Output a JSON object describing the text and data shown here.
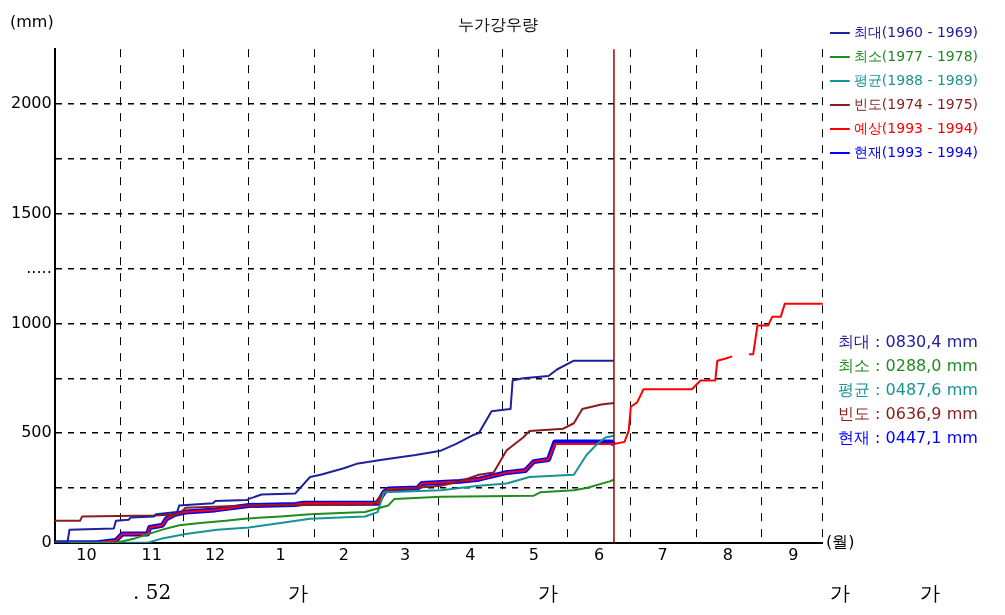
{
  "chart_data": {
    "type": "line",
    "title": "누가강우량",
    "ylabel": "(mm)",
    "xlabel": "(월)",
    "xlim": [
      "1993-10-01",
      "1994-09-30"
    ],
    "ylim": [
      0,
      2250
    ],
    "xticks": [
      {
        "value": "1993-10-01",
        "label": null
      },
      {
        "value": "1993-10-16",
        "label": "10"
      },
      {
        "value": "1993-11-01",
        "label": null
      },
      {
        "value": "1993-11-16",
        "label": "11"
      },
      {
        "value": "1993-12-01",
        "label": null
      },
      {
        "value": "1993-12-16",
        "label": "12"
      },
      {
        "value": "1994-01-01",
        "label": null
      },
      {
        "value": "1994-01-16",
        "label": "1"
      },
      {
        "value": "1994-02-01",
        "label": null
      },
      {
        "value": "1994-02-15",
        "label": "2"
      },
      {
        "value": "1994-03-01",
        "label": null
      },
      {
        "value": "1994-03-16",
        "label": "3"
      },
      {
        "value": "1994-04-01",
        "label": null
      },
      {
        "value": "1994-04-16",
        "label": "4"
      },
      {
        "value": "1994-05-01",
        "label": null
      },
      {
        "value": "1994-05-16",
        "label": "5"
      },
      {
        "value": "1994-06-01",
        "label": null
      },
      {
        "value": "1994-06-16",
        "label": "6"
      },
      {
        "value": "1994-07-01",
        "label": null
      },
      {
        "value": "1994-07-16",
        "label": "7"
      },
      {
        "value": "1994-08-01",
        "label": null
      },
      {
        "value": "1994-08-16",
        "label": "8"
      },
      {
        "value": "1994-09-01",
        "label": null
      },
      {
        "value": "1994-09-16",
        "label": "9"
      },
      {
        "value": "1994-09-30",
        "label": null
      }
    ],
    "yticks": [
      0,
      {
        "value": 250,
        "label": null
      },
      500,
      {
        "value": 750,
        "label": null
      },
      1000,
      {
        "value": 1250,
        "label": "....."
      },
      1500,
      {
        "value": 1750,
        "label": null
      },
      2000
    ],
    "grid": true,
    "legend": "top right",
    "series": [
      {
        "name": "최대(1960 - 1969)",
        "color": "#20209c",
        "x": [
          "1993-10-01",
          "1993-10-07",
          "1993-10-08",
          "1993-10-29",
          "1993-10-30",
          "1993-11-05",
          "1993-11-06",
          "1993-11-17",
          "1993-11-18",
          "1993-11-28",
          "1993-11-29",
          "1993-12-15",
          "1993-12-16",
          "1993-12-31",
          "1994-01-01",
          "1994-01-07",
          "1994-01-23",
          "1994-01-30",
          "1994-02-04",
          "1994-02-15",
          "1994-02-21",
          "1994-03-06",
          "1994-03-21",
          "1994-04-02",
          "1994-04-09",
          "1994-04-17",
          "1994-04-20",
          "1994-04-26",
          "1994-05-05",
          "1994-05-06",
          "1994-05-11",
          "1994-05-23",
          "1994-05-27",
          "1994-06-04",
          "1994-06-23"
        ],
        "values": [
          0,
          0,
          60,
          65,
          100,
          105,
          115,
          120,
          130,
          140,
          170,
          180,
          190,
          195,
          200,
          220,
          225,
          300,
          310,
          340,
          360,
          380,
          400,
          420,
          450,
          490,
          500,
          600,
          610,
          740,
          750,
          760,
          790,
          830,
          830
        ]
      },
      {
        "name": "최소(1977 - 1978)",
        "color": "#208c20",
        "x": [
          "1993-10-01",
          "1993-10-30",
          "1993-11-08",
          "1993-11-21",
          "1993-11-29",
          "1993-12-09",
          "1993-12-21",
          "1993-12-30",
          "1994-01-16",
          "1994-01-30",
          "1994-02-25",
          "1994-03-08",
          "1994-03-11",
          "1994-04-02",
          "1994-05-16",
          "1994-05-19",
          "1994-06-04",
          "1994-06-10",
          "1994-06-21",
          "1994-06-23"
        ],
        "values": [
          0,
          0,
          20,
          60,
          80,
          90,
          100,
          110,
          120,
          130,
          140,
          170,
          200,
          210,
          215,
          230,
          240,
          250,
          280,
          288
        ]
      },
      {
        "name": "평균(1988 - 1989)",
        "color": "#169494",
        "x": [
          "1993-10-01",
          "1993-11-14",
          "1993-11-21",
          "1993-12-02",
          "1993-12-17",
          "1994-01-01",
          "1994-01-16",
          "1994-01-30",
          "1994-02-25",
          "1994-03-03",
          "1994-03-06",
          "1994-04-02",
          "1994-04-20",
          "1994-05-03",
          "1994-05-14",
          "1994-06-04",
          "1994-06-10",
          "1994-06-15",
          "1994-06-19",
          "1994-06-23"
        ],
        "values": [
          0,
          0,
          20,
          40,
          60,
          70,
          90,
          110,
          120,
          140,
          230,
          240,
          260,
          270,
          300,
          310,
          400,
          450,
          480,
          488
        ]
      },
      {
        "name": "빈도(1974 - 1975)",
        "color": "#8c1c1c",
        "x": [
          "1993-10-01",
          "1993-10-13",
          "1993-10-14",
          "1993-11-17",
          "1993-11-29",
          "1993-12-02",
          "1994-01-01",
          "1994-03-01",
          "1994-03-07",
          "1994-04-02",
          "1994-04-11",
          "1994-04-20",
          "1994-04-27",
          "1994-05-03",
          "1994-05-07",
          "1994-05-11",
          "1994-05-14",
          "1994-05-30",
          "1994-06-04",
          "1994-06-08",
          "1994-06-17",
          "1994-06-23"
        ],
        "values": [
          100,
          100,
          120,
          125,
          130,
          160,
          170,
          175,
          240,
          260,
          280,
          310,
          320,
          420,
          450,
          480,
          510,
          520,
          545,
          610,
          630,
          637
        ]
      },
      {
        "name": "예상(1993 - 1994)",
        "color": "#ff0000",
        "x": [
          "1993-10-01",
          "1993-10-21",
          "1993-10-30",
          "1993-11-02",
          "1993-11-14",
          "1993-11-15",
          "1993-11-21",
          "1993-11-23",
          "1993-11-27",
          "1993-12-02",
          "1993-12-16",
          "1994-01-01",
          "1994-01-23",
          "1994-01-27",
          "1994-03-03",
          "1994-03-06",
          "1994-03-08",
          "1994-03-22",
          "1994-03-24",
          "1994-04-11",
          "1994-04-20",
          "1994-05-03",
          "1994-05-12",
          "1994-05-16",
          "1994-05-23",
          "1994-05-26",
          "1994-06-23",
          "1994-06-28",
          "1994-06-30",
          "1994-07-01",
          "1994-07-04",
          "1994-07-07",
          "1994-07-30",
          "1994-07-31",
          "1994-08-03",
          "1994-08-10",
          "1994-08-11",
          "1994-08-15",
          "1994-08-18",
          "1994-08-22",
          "1994-08-26",
          "1994-08-28",
          "1994-08-30",
          "1994-09-04",
          "1994-09-06",
          "1994-09-10",
          "1994-09-12",
          "1994-09-30"
        ],
        "values": [
          0,
          0,
          10,
          40,
          40,
          70,
          80,
          110,
          130,
          140,
          150,
          170,
          175,
          180,
          180,
          230,
          245,
          250,
          270,
          280,
          290,
          320,
          330,
          370,
          380,
          450,
          450,
          460,
          510,
          620,
          640,
          700,
          700,
          710,
          740,
          740,
          830,
          840,
          850,
          null,
          860,
          860,
          990,
          990,
          1030,
          1030,
          1090,
          1090
        ]
      },
      {
        "name": "현재(1993 - 1994)",
        "color": "#0000ff",
        "x": [
          "1993-10-01",
          "1993-10-21",
          "1993-10-30",
          "1993-11-02",
          "1993-11-14",
          "1993-11-15",
          "1993-11-21",
          "1993-11-23",
          "1993-11-27",
          "1993-12-02",
          "1993-12-16",
          "1994-01-01",
          "1994-01-23",
          "1994-01-27",
          "1994-03-03",
          "1994-03-06",
          "1994-03-08",
          "1994-03-22",
          "1994-03-24",
          "1994-04-11",
          "1994-04-20",
          "1994-05-03",
          "1994-05-12",
          "1994-05-16",
          "1994-05-23",
          "1994-05-26",
          "1994-06-22",
          "1994-06-23"
        ],
        "values": [
          0,
          0,
          10,
          40,
          40,
          70,
          80,
          110,
          130,
          140,
          150,
          170,
          175,
          180,
          180,
          230,
          245,
          250,
          270,
          280,
          290,
          320,
          330,
          370,
          380,
          460,
          460,
          447
        ]
      }
    ],
    "ref_lines": [
      {
        "axis": "x",
        "value": "1994-06-23",
        "color": "#a00000"
      }
    ],
    "annotations": [
      "최대 : 0830,4 mm",
      "최소 : 0288,0 mm",
      "평균 : 0487,6 mm",
      "빈도 : 0636,9 mm",
      "현재 : 0447,1 mm",
      ". 52",
      "가",
      "가",
      "가",
      "가"
    ]
  }
}
